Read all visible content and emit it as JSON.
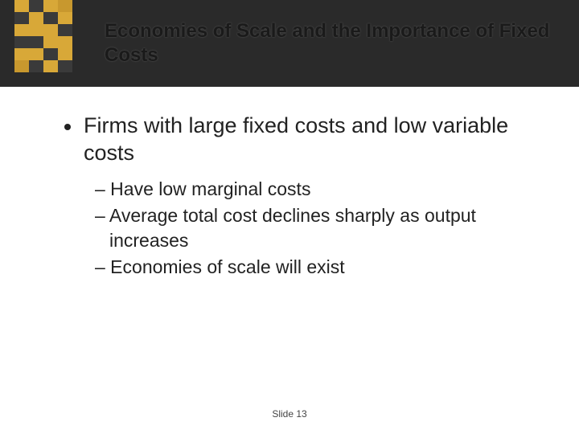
{
  "header": {
    "title": "Economies of Scale and the Importance of Fixed Costs",
    "band_color": "#2a2a2a",
    "logo_cells": [
      "#d8a838",
      "#3a3a3a",
      "#d8a838",
      "#c8982e",
      "#3a3a3a",
      "#d8a838",
      "#3a3a3a",
      "#d8a838",
      "#d8a838",
      "#d8a838",
      "#d8a838",
      "#3a3a3a",
      "#3a3a3a",
      "#3a3a3a",
      "#d8a838",
      "#d8a838",
      "#d8a838",
      "#d8a838",
      "#3a3a3a",
      "#d8a838",
      "#c8982e",
      "#3a3a3a",
      "#d8a838",
      "#3a3a3a"
    ]
  },
  "body": {
    "main_bullet": "Firms with large fixed costs and low variable costs",
    "sub_bullets": [
      "Have low marginal costs",
      "Average total cost declines sharply as output increases",
      "Economies of scale will exist"
    ],
    "text_color": "#222222",
    "main_fontsize": 27,
    "sub_fontsize": 23
  },
  "footer": {
    "label": "Slide 13",
    "fontsize": 12,
    "color": "#444444"
  }
}
